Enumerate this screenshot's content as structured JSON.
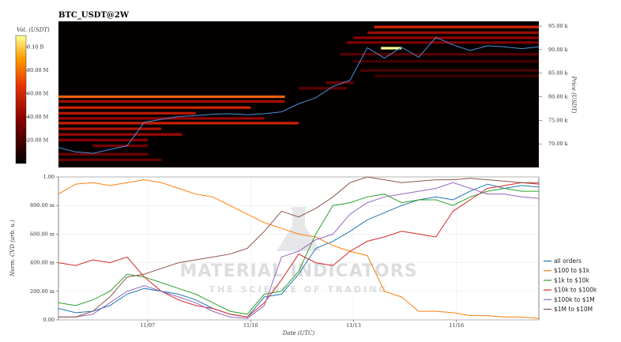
{
  "title": "BTC_USDT@2W",
  "colors": {
    "price_line": "#4a90d9",
    "all_orders": "#1f77b4",
    "s100_1k": "#ff7f0e",
    "s1k_10k": "#2ca02c",
    "s10k_100k": "#d62728",
    "s100k_1m": "#9467bd",
    "s1m_10m": "#8c564b"
  },
  "watermark": {
    "line1": "MATERIAL INDICATORS",
    "line2": "THE SCIENCE OF TRADING"
  },
  "chart_data": [
    {
      "type": "heatmap",
      "name": "orderbook-heatmap",
      "colorbar": {
        "label": "Vol. (USDT)",
        "ticks": [
          "20.00 M",
          "40.00 M",
          "60.00 M",
          "80.00 M",
          "0.10 B"
        ],
        "tick_values": [
          20,
          40,
          60,
          80,
          100
        ],
        "range": [
          0,
          110
        ]
      },
      "ylabel": "Price (USDT)",
      "yticks": [
        "70.00 k",
        "75.00 k",
        "80.00 k",
        "85.00 k",
        "90.00 k",
        "95.00 k"
      ],
      "ytick_values": [
        70,
        75,
        80,
        85,
        90,
        95
      ],
      "ylim": [
        65,
        96
      ],
      "xlim": [
        0,
        14
      ],
      "price_series": {
        "x": [
          0,
          0.5,
          1.0,
          1.5,
          2.0,
          2.5,
          3.0,
          3.5,
          4.0,
          4.5,
          5.0,
          5.5,
          6.0,
          6.5,
          7.0,
          7.5,
          8.0,
          8.5,
          9.0,
          9.5,
          10.0,
          10.5,
          11.0,
          11.5,
          12.0,
          12.5,
          13.0,
          13.5,
          14.0
        ],
        "y": [
          69.2,
          68.3,
          68.0,
          68.8,
          69.6,
          74.6,
          75.2,
          75.8,
          76.0,
          76.3,
          76.4,
          76.2,
          76.4,
          76.8,
          78.5,
          79.8,
          82.2,
          83.5,
          90.4,
          88.2,
          90.5,
          88.4,
          92.6,
          91.0,
          89.8,
          90.8,
          90.6,
          90.2,
          90.6
        ]
      },
      "levels": [
        {
          "price": 94.8,
          "from": 9.2,
          "to": 14.0,
          "vol": 55
        },
        {
          "price": 93.6,
          "from": 9.0,
          "to": 14.0,
          "vol": 40
        },
        {
          "price": 92.5,
          "from": 8.6,
          "to": 14.0,
          "vol": 36
        },
        {
          "price": 91.5,
          "from": 8.4,
          "to": 14.0,
          "vol": 33
        },
        {
          "price": 90.3,
          "from": 9.4,
          "to": 10.0,
          "vol": 100
        },
        {
          "price": 89.0,
          "from": 8.2,
          "to": 14.0,
          "vol": 22
        },
        {
          "price": 87.5,
          "from": 8.6,
          "to": 14.0,
          "vol": 18
        },
        {
          "price": 85.6,
          "from": 8.8,
          "to": 14.0,
          "vol": 20
        },
        {
          "price": 84.4,
          "from": 9.2,
          "to": 14.0,
          "vol": 16
        },
        {
          "price": 83.0,
          "from": 7.8,
          "to": 8.6,
          "vol": 28
        },
        {
          "price": 81.8,
          "from": 7.0,
          "to": 8.4,
          "vol": 24
        },
        {
          "price": 80.0,
          "from": 0.0,
          "to": 6.6,
          "vol": 70
        },
        {
          "price": 79.0,
          "from": 0.0,
          "to": 6.6,
          "vol": 42
        },
        {
          "price": 77.7,
          "from": 0.0,
          "to": 5.6,
          "vol": 55
        },
        {
          "price": 76.5,
          "from": 0.0,
          "to": 4.0,
          "vol": 48
        },
        {
          "price": 75.4,
          "from": 0.0,
          "to": 6.0,
          "vol": 38
        },
        {
          "price": 74.4,
          "from": 0.0,
          "to": 7.0,
          "vol": 52
        },
        {
          "price": 73.2,
          "from": 0.0,
          "to": 3.0,
          "vol": 45
        },
        {
          "price": 72.0,
          "from": 0.0,
          "to": 3.6,
          "vol": 40
        },
        {
          "price": 70.8,
          "from": 0.0,
          "to": 2.6,
          "vol": 35
        },
        {
          "price": 69.6,
          "from": 1.0,
          "to": 2.6,
          "vol": 30
        },
        {
          "price": 67.8,
          "from": 0.0,
          "to": 2.6,
          "vol": 28
        },
        {
          "price": 66.6,
          "from": 0.0,
          "to": 3.0,
          "vol": 26
        }
      ]
    },
    {
      "type": "line",
      "name": "norm-cvd",
      "xlabel": "Date (UTC)",
      "ylabel": "Norm. CVD (arb. u.)",
      "xticks": [
        "11/07",
        "11/10",
        "11/13",
        "11/16"
      ],
      "xtick_values": [
        2.6,
        5.6,
        8.6,
        11.6
      ],
      "yticks": [
        "0.00",
        "200.00 m",
        "400.00 m",
        "600.00 m",
        "800.00 m",
        "1.00"
      ],
      "ytick_values": [
        0,
        0.2,
        0.4,
        0.6,
        0.8,
        1.0
      ],
      "xlim": [
        0,
        14
      ],
      "ylim": [
        0,
        1
      ],
      "legend_position": "lower-right",
      "series": [
        {
          "name": "all orders",
          "color_key": "all_orders",
          "x": [
            0,
            0.5,
            1.0,
            1.5,
            2.0,
            2.5,
            3.0,
            3.5,
            4.0,
            4.5,
            5.0,
            5.5,
            6.0,
            6.5,
            7.0,
            7.5,
            8.0,
            8.5,
            9.0,
            9.5,
            10.0,
            10.5,
            11.0,
            11.5,
            12.0,
            12.5,
            13.0,
            13.5,
            14.0
          ],
          "y": [
            0.08,
            0.05,
            0.06,
            0.1,
            0.18,
            0.22,
            0.2,
            0.18,
            0.14,
            0.08,
            0.04,
            0.02,
            0.16,
            0.18,
            0.32,
            0.5,
            0.55,
            0.62,
            0.7,
            0.75,
            0.8,
            0.84,
            0.86,
            0.84,
            0.9,
            0.95,
            0.92,
            0.94,
            0.93
          ]
        },
        {
          "name": "$100 to $1k",
          "color_key": "s100_1k",
          "x": [
            0,
            0.5,
            1.0,
            1.5,
            2.0,
            2.5,
            3.0,
            3.5,
            4.0,
            4.5,
            5.0,
            5.5,
            6.0,
            6.5,
            7.0,
            7.5,
            8.0,
            8.5,
            9.0,
            9.5,
            10.0,
            10.5,
            11.0,
            11.5,
            12.0,
            12.5,
            13.0,
            13.5,
            14.0
          ],
          "y": [
            0.88,
            0.95,
            0.96,
            0.94,
            0.96,
            0.98,
            0.96,
            0.92,
            0.88,
            0.86,
            0.8,
            0.74,
            0.68,
            0.64,
            0.6,
            0.58,
            0.52,
            0.48,
            0.45,
            0.2,
            0.16,
            0.06,
            0.06,
            0.05,
            0.03,
            0.03,
            0.02,
            0.02,
            0.01
          ]
        },
        {
          "name": "$1k to $10k",
          "color_key": "s1k_10k",
          "x": [
            0,
            0.5,
            1.0,
            1.5,
            2.0,
            2.5,
            3.0,
            3.5,
            4.0,
            4.5,
            5.0,
            5.5,
            6.0,
            6.5,
            7.0,
            7.5,
            8.0,
            8.5,
            9.0,
            9.5,
            10.0,
            10.5,
            11.0,
            11.5,
            12.0,
            12.5,
            13.0,
            13.5,
            14.0
          ],
          "y": [
            0.12,
            0.1,
            0.14,
            0.2,
            0.32,
            0.3,
            0.26,
            0.22,
            0.18,
            0.12,
            0.06,
            0.04,
            0.18,
            0.2,
            0.34,
            0.6,
            0.8,
            0.82,
            0.86,
            0.88,
            0.82,
            0.84,
            0.84,
            0.8,
            0.86,
            0.9,
            0.92,
            0.9,
            0.9
          ]
        },
        {
          "name": "$10k to $100k",
          "color_key": "s10k_100k",
          "x": [
            0,
            0.5,
            1.0,
            1.5,
            2.0,
            2.5,
            3.0,
            3.5,
            4.0,
            4.5,
            5.0,
            5.5,
            6.0,
            6.5,
            7.0,
            7.5,
            8.0,
            8.5,
            9.0,
            9.5,
            10.0,
            10.5,
            11.0,
            11.5,
            12.0,
            12.5,
            13.0,
            13.5,
            14.0
          ],
          "y": [
            0.4,
            0.38,
            0.42,
            0.4,
            0.44,
            0.3,
            0.2,
            0.14,
            0.1,
            0.08,
            0.04,
            0.02,
            0.12,
            0.28,
            0.46,
            0.4,
            0.38,
            0.48,
            0.55,
            0.58,
            0.62,
            0.6,
            0.58,
            0.76,
            0.84,
            0.92,
            0.94,
            0.96,
            0.95
          ]
        },
        {
          "name": "$100k to $1M",
          "color_key": "s100k_1m",
          "x": [
            0,
            0.5,
            1.0,
            1.5,
            2.0,
            2.5,
            3.0,
            3.5,
            4.0,
            4.5,
            5.0,
            5.5,
            6.0,
            6.5,
            7.0,
            7.5,
            8.0,
            8.5,
            9.0,
            9.5,
            10.0,
            10.5,
            11.0,
            11.5,
            12.0,
            12.5,
            13.0,
            13.5,
            14.0
          ],
          "y": [
            0.02,
            0.02,
            0.04,
            0.12,
            0.2,
            0.24,
            0.2,
            0.16,
            0.12,
            0.06,
            0.02,
            0.01,
            0.1,
            0.44,
            0.48,
            0.56,
            0.6,
            0.74,
            0.82,
            0.86,
            0.88,
            0.9,
            0.92,
            0.96,
            0.92,
            0.88,
            0.88,
            0.86,
            0.85
          ]
        },
        {
          "name": "$1M to $10M",
          "color_key": "s1m_10m",
          "x": [
            0,
            0.5,
            1.0,
            1.5,
            2.0,
            2.5,
            3.0,
            3.5,
            4.0,
            4.5,
            5.0,
            5.5,
            6.0,
            6.5,
            7.0,
            7.5,
            8.0,
            8.5,
            9.0,
            9.5,
            10.0,
            10.5,
            11.0,
            11.5,
            12.0,
            12.5,
            13.0,
            13.5,
            14.0
          ],
          "y": [
            0.02,
            0.02,
            0.06,
            0.16,
            0.3,
            0.32,
            0.36,
            0.4,
            0.42,
            0.44,
            0.46,
            0.5,
            0.62,
            0.76,
            0.72,
            0.78,
            0.86,
            0.96,
            1.0,
            0.98,
            0.96,
            0.97,
            0.98,
            0.98,
            0.99,
            0.98,
            0.97,
            0.96,
            0.96
          ]
        }
      ]
    }
  ]
}
